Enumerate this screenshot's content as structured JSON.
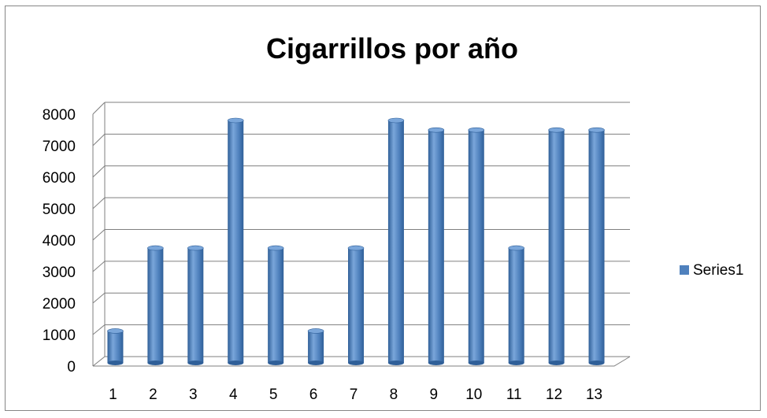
{
  "chart_data": {
    "type": "bar",
    "title": "Cigarrillos por año",
    "categories": [
      "1",
      "2",
      "3",
      "4",
      "5",
      "6",
      "7",
      "8",
      "9",
      "10",
      "11",
      "12",
      "13"
    ],
    "series": [
      {
        "name": "Series1",
        "values": [
          1000,
          3600,
          3600,
          7600,
          3600,
          1000,
          3600,
          7600,
          7300,
          7300,
          3600,
          7300,
          7300
        ]
      }
    ],
    "yticks": [
      "0",
      "1000",
      "2000",
      "3000",
      "4000",
      "5000",
      "6000",
      "7000",
      "8000"
    ],
    "ylim": [
      0,
      8000
    ],
    "grid": true,
    "legend_position": "right",
    "colors": {
      "bar": "#4f81bd",
      "bar_dark": "#2f5f98",
      "bar_light": "#7aa6da",
      "grid": "#7f7f7f"
    }
  }
}
